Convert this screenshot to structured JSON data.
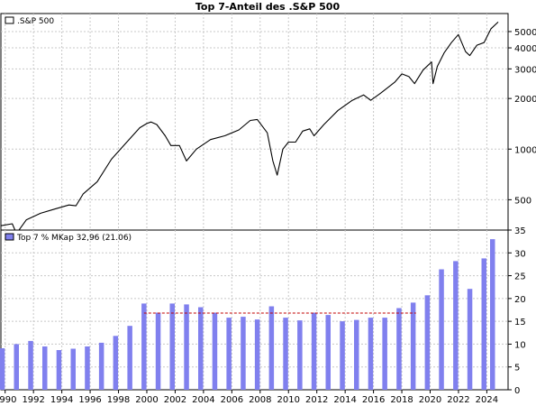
{
  "chart_data": [
    {
      "type": "line",
      "title": "Top 7-Anteil des .S&P 500",
      "scale": "log",
      "legend": {
        "label": ".S&P 500",
        "placement": "top-left",
        "color": "#ffffff"
      },
      "line_color": "#000000",
      "ylim": [
        330,
        6400
      ],
      "xlim": [
        1989.7,
        2025.5
      ],
      "y_ticks": [
        500,
        1000,
        2000,
        3000,
        4000,
        5000
      ],
      "grid": true,
      "x": [
        1989.7,
        1990.5,
        1990.8,
        1991.5,
        1992.5,
        1993.5,
        1994.5,
        1995.0,
        1995.5,
        1996.5,
        1997.5,
        1998.5,
        1999.5,
        2000.0,
        2000.3,
        2000.7,
        2001.3,
        2001.7,
        2002.3,
        2002.8,
        2003.5,
        2004.5,
        2005.5,
        2006.5,
        2007.3,
        2007.8,
        2008.5,
        2008.9,
        2009.2,
        2009.6,
        2010.0,
        2010.5,
        2011.0,
        2011.5,
        2011.8,
        2012.5,
        2013.5,
        2014.5,
        2015.3,
        2015.8,
        2016.5,
        2017.5,
        2018.0,
        2018.5,
        2018.9,
        2019.5,
        2020.1,
        2020.2,
        2020.5,
        2021.0,
        2021.5,
        2021.99,
        2022.5,
        2022.8,
        2023.3,
        2023.8,
        2024.3,
        2024.8
      ],
      "values": [
        350,
        360,
        315,
        380,
        415,
        440,
        465,
        460,
        540,
        640,
        870,
        1080,
        1340,
        1420,
        1450,
        1400,
        1200,
        1050,
        1050,
        850,
        1000,
        1140,
        1200,
        1300,
        1480,
        1500,
        1250,
        850,
        700,
        1000,
        1100,
        1100,
        1280,
        1320,
        1200,
        1400,
        1700,
        1950,
        2100,
        1950,
        2150,
        2500,
        2800,
        2700,
        2450,
        2950,
        3300,
        2450,
        3100,
        3750,
        4300,
        4800,
        3800,
        3600,
        4150,
        4300,
        5200,
        5700
      ]
    },
    {
      "type": "bar",
      "legend": {
        "label": "Top 7 % MKap 32,96 (21.06)",
        "placement": "top-left",
        "color": "#8080ee"
      },
      "bar_color": "#8080ee",
      "ylim": [
        0,
        35
      ],
      "xlim": [
        1989.7,
        2025.5
      ],
      "y_ticks": [
        0,
        5,
        10,
        15,
        20,
        25,
        30,
        35
      ],
      "x_ticks": [
        1990,
        1992,
        1994,
        1996,
        1998,
        2000,
        2002,
        2004,
        2006,
        2008,
        2010,
        2012,
        2014,
        2016,
        2018,
        2020,
        2022,
        2024
      ],
      "grid": true,
      "x": [
        1989.8,
        1990.8,
        1991.8,
        1992.8,
        1993.8,
        1994.8,
        1995.8,
        1996.8,
        1997.8,
        1998.8,
        1999.8,
        2000.8,
        2001.8,
        2002.8,
        2003.8,
        2004.8,
        2005.8,
        2006.8,
        2007.8,
        2008.8,
        2009.8,
        2010.8,
        2011.8,
        2012.8,
        2013.8,
        2014.8,
        2015.8,
        2016.8,
        2017.8,
        2018.8,
        2019.8,
        2020.8,
        2021.8,
        2022.8,
        2023.8,
        2024.4
      ],
      "values": [
        9.1,
        10.0,
        10.7,
        9.5,
        8.7,
        9.0,
        9.5,
        10.3,
        11.8,
        14.0,
        18.9,
        16.9,
        18.9,
        18.7,
        18.1,
        16.9,
        15.8,
        16.0,
        15.4,
        18.3,
        15.8,
        15.2,
        16.9,
        16.4,
        15.0,
        15.3,
        15.8,
        15.8,
        17.9,
        19.1,
        20.7,
        26.4,
        28.2,
        22.1,
        28.8,
        33.0
      ],
      "reference_line": {
        "value": 16.8,
        "from": 1999.8,
        "to": 2019.0,
        "color": "#c00000"
      }
    }
  ]
}
